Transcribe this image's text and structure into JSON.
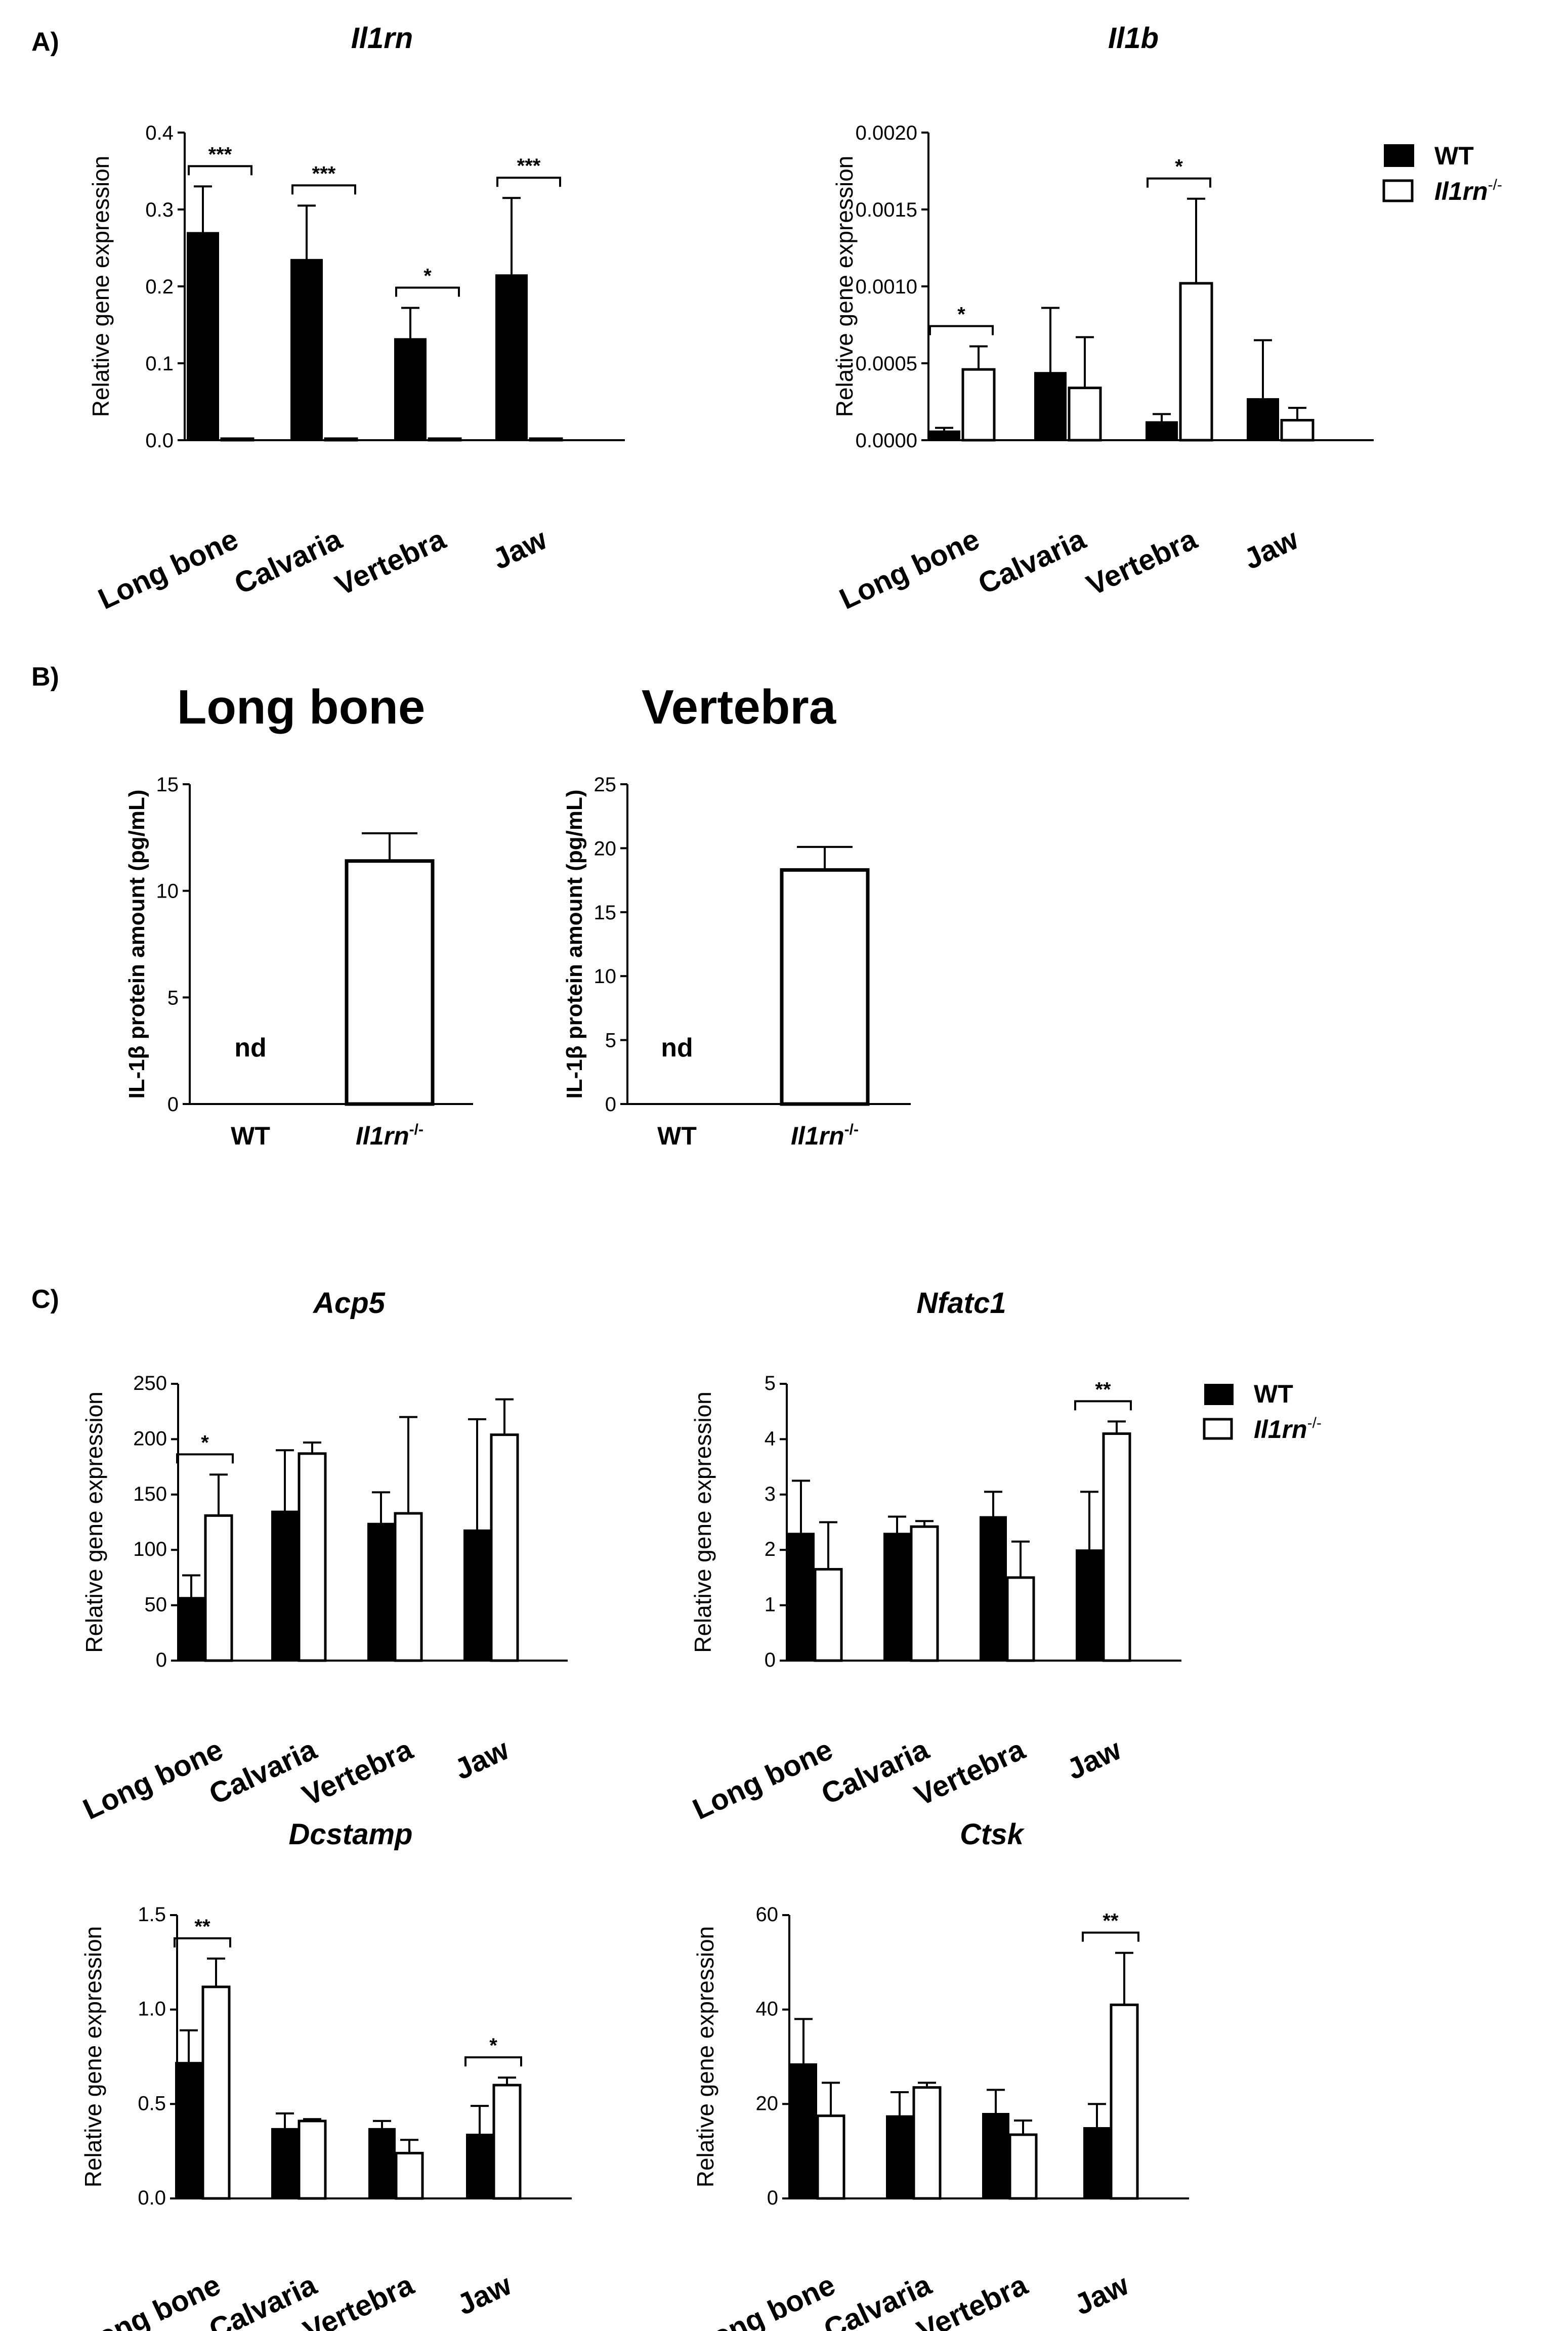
{
  "panels": {
    "A": "A)",
    "B": "B)",
    "C": "C)"
  },
  "legend": {
    "wt": "WT",
    "ko": "Il1rn",
    "ko_sup": "-/-"
  },
  "axis": {
    "rel_expr": "Relative gene expression",
    "il1b_protein": "IL-1β protein amount (pg/mL)"
  },
  "chart_data": [
    {
      "id": "il1rn",
      "type": "bar",
      "title": "Il1rn",
      "ylabel": "Relative gene expression",
      "ylim": [
        0,
        0.4
      ],
      "yticks": [
        "0.0",
        "0.1",
        "0.2",
        "0.3",
        "0.4"
      ],
      "categories": [
        "Long bone",
        "Calvaria",
        "Vertebra",
        "Jaw"
      ],
      "series": [
        {
          "name": "WT",
          "values": [
            0.27,
            0.235,
            0.132,
            0.215
          ],
          "errors": [
            0.06,
            0.07,
            0.04,
            0.1
          ]
        },
        {
          "name": "Il1rn -/-",
          "values": [
            0.002,
            0.002,
            0.002,
            0.002
          ],
          "errors": [
            0,
            0,
            0,
            0
          ]
        }
      ],
      "significance": [
        "***",
        "***",
        "*",
        "***"
      ]
    },
    {
      "id": "il1b",
      "type": "bar",
      "title": "Il1b",
      "ylabel": "Relative gene expression",
      "ylim": [
        0,
        0.002
      ],
      "yticks": [
        "0.0000",
        "0.0005",
        "0.0010",
        "0.0015",
        "0.0020"
      ],
      "categories": [
        "Long bone",
        "Calvaria",
        "Vertebra",
        "Jaw"
      ],
      "series": [
        {
          "name": "WT",
          "values": [
            6e-05,
            0.00044,
            0.00012,
            0.00027
          ],
          "errors": [
            2e-05,
            0.00042,
            5e-05,
            0.00038
          ]
        },
        {
          "name": "Il1rn -/-",
          "values": [
            0.00046,
            0.00034,
            0.00102,
            0.00013
          ],
          "errors": [
            0.00015,
            0.00033,
            0.00055,
            8e-05
          ]
        }
      ],
      "significance": [
        "*",
        "",
        "*",
        ""
      ]
    },
    {
      "id": "prot_long",
      "type": "bar",
      "title": "Long bone",
      "ylabel": "IL-1β protein amount (pg/mL)",
      "ylim": [
        0,
        15
      ],
      "yticks": [
        "0",
        "5",
        "10",
        "15"
      ],
      "categories": [
        "WT",
        "Il1rn-/-"
      ],
      "values": [
        null,
        11.4
      ],
      "errors": [
        0,
        1.3
      ],
      "annotation": "nd"
    },
    {
      "id": "prot_vert",
      "type": "bar",
      "title": "Vertebra",
      "ylabel": "IL-1β protein amount (pg/mL)",
      "ylim": [
        0,
        25
      ],
      "yticks": [
        "0",
        "5",
        "10",
        "15",
        "20",
        "25"
      ],
      "categories": [
        "WT",
        "Il1rn-/-"
      ],
      "values": [
        null,
        18.3
      ],
      "errors": [
        0,
        1.8
      ],
      "annotation": "nd"
    },
    {
      "id": "acp5",
      "type": "bar",
      "title": "Acp5",
      "ylabel": "Relative gene expression",
      "ylim": [
        0,
        250
      ],
      "yticks": [
        "0",
        "50",
        "100",
        "150",
        "200",
        "250"
      ],
      "categories": [
        "Long bone",
        "Calvaria",
        "Vertebra",
        "Jaw"
      ],
      "series": [
        {
          "name": "WT",
          "values": [
            57,
            135,
            124,
            118
          ],
          "errors": [
            20,
            55,
            28,
            100
          ]
        },
        {
          "name": "Il1rn -/-",
          "values": [
            131,
            187,
            133,
            204
          ],
          "errors": [
            37,
            10,
            87,
            32
          ]
        }
      ],
      "significance": [
        "*",
        "",
        "",
        ""
      ]
    },
    {
      "id": "nfatc1",
      "type": "bar",
      "title": "Nfatc1",
      "ylabel": "Relative gene expression",
      "ylim": [
        0,
        5
      ],
      "yticks": [
        "0",
        "1",
        "2",
        "3",
        "4",
        "5"
      ],
      "categories": [
        "Long bone",
        "Calvaria",
        "Vertebra",
        "Jaw"
      ],
      "series": [
        {
          "name": "WT",
          "values": [
            2.3,
            2.3,
            2.6,
            2.0
          ],
          "errors": [
            0.95,
            0.3,
            0.45,
            1.05
          ]
        },
        {
          "name": "Il1rn -/-",
          "values": [
            1.65,
            2.42,
            1.5,
            4.1
          ],
          "errors": [
            0.85,
            0.1,
            0.65,
            0.22
          ]
        }
      ],
      "significance": [
        "",
        "",
        "",
        "**"
      ]
    },
    {
      "id": "dcstamp",
      "type": "bar",
      "title": "Dcstamp",
      "ylabel": "Relative gene expression",
      "ylim": [
        0,
        1.5
      ],
      "yticks": [
        "0.0",
        "0.5",
        "1.0",
        "1.5"
      ],
      "categories": [
        "Long bone",
        "Calvaria",
        "Vertebra",
        "Jaw"
      ],
      "series": [
        {
          "name": "WT",
          "values": [
            0.72,
            0.37,
            0.37,
            0.34
          ],
          "errors": [
            0.17,
            0.08,
            0.04,
            0.15
          ]
        },
        {
          "name": "Il1rn -/-",
          "values": [
            1.12,
            0.41,
            0.24,
            0.6
          ],
          "errors": [
            0.15,
            0.01,
            0.07,
            0.04
          ]
        }
      ],
      "significance": [
        "**",
        "",
        "",
        "*"
      ]
    },
    {
      "id": "ctsk",
      "type": "bar",
      "title": "Ctsk",
      "ylabel": "Relative gene expression",
      "ylim": [
        0,
        60
      ],
      "yticks": [
        "0",
        "20",
        "40",
        "60"
      ],
      "categories": [
        "Long bone",
        "Calvaria",
        "Vertebra",
        "Jaw"
      ],
      "series": [
        {
          "name": "WT",
          "values": [
            28.5,
            17.5,
            18,
            15
          ],
          "errors": [
            9.5,
            5,
            5,
            5
          ]
        },
        {
          "name": "Il1rn -/-",
          "values": [
            17.5,
            23.5,
            13.5,
            41
          ],
          "errors": [
            7,
            1,
            3,
            11
          ]
        }
      ],
      "significance": [
        "",
        "",
        "",
        "**"
      ]
    }
  ]
}
